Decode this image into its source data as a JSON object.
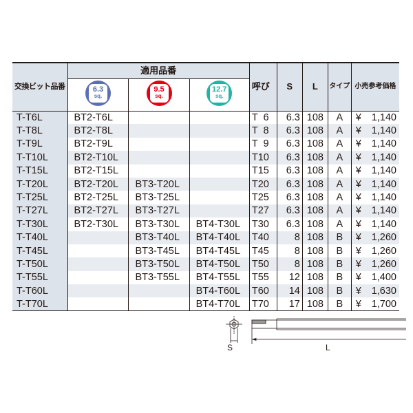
{
  "header": {
    "col_part": "交換ビット品番",
    "col_group": "適用品番",
    "badges": [
      {
        "value": "6.3",
        "unit": "sq.",
        "color": "#5b6fb4"
      },
      {
        "value": "9.5",
        "unit": "sq.",
        "color": "#e60012"
      },
      {
        "value": "12.7",
        "unit": "sq.",
        "color": "#1fb5a5"
      }
    ],
    "col_size": "呼び",
    "col_s": "S",
    "col_l": "L",
    "col_type": "タイプ",
    "col_price": "小売参考価格"
  },
  "rows": [
    {
      "part": "T-T6L",
      "bt2": "BT2-T6L",
      "bt3": "",
      "bt4": "",
      "size": "T  6",
      "s": "6.3",
      "l": "108",
      "type": "A",
      "yen": "¥",
      "price": "1,140"
    },
    {
      "part": "T-T8L",
      "bt2": "BT2-T8L",
      "bt3": "",
      "bt4": "",
      "size": "T  8",
      "s": "6.3",
      "l": "108",
      "type": "A",
      "yen": "¥",
      "price": "1,140"
    },
    {
      "part": "T-T9L",
      "bt2": "BT2-T9L",
      "bt3": "",
      "bt4": "",
      "size": "T  9",
      "s": "6.3",
      "l": "108",
      "type": "A",
      "yen": "¥",
      "price": "1,140"
    },
    {
      "part": "T-T10L",
      "bt2": "BT2-T10L",
      "bt3": "",
      "bt4": "",
      "size": "T10",
      "s": "6.3",
      "l": "108",
      "type": "A",
      "yen": "¥",
      "price": "1,140"
    },
    {
      "part": "T-T15L",
      "bt2": "BT2-T15L",
      "bt3": "",
      "bt4": "",
      "size": "T15",
      "s": "6.3",
      "l": "108",
      "type": "A",
      "yen": "¥",
      "price": "1,140"
    },
    {
      "part": "T-T20L",
      "bt2": "BT2-T20L",
      "bt3": "BT3-T20L",
      "bt4": "",
      "size": "T20",
      "s": "6.3",
      "l": "108",
      "type": "A",
      "yen": "¥",
      "price": "1,140"
    },
    {
      "part": "T-T25L",
      "bt2": "BT2-T25L",
      "bt3": "BT3-T25L",
      "bt4": "",
      "size": "T25",
      "s": "6.3",
      "l": "108",
      "type": "A",
      "yen": "¥",
      "price": "1,140"
    },
    {
      "part": "T-T27L",
      "bt2": "BT2-T27L",
      "bt3": "BT3-T27L",
      "bt4": "",
      "size": "T27",
      "s": "6.3",
      "l": "108",
      "type": "A",
      "yen": "¥",
      "price": "1,140"
    },
    {
      "part": "T-T30L",
      "bt2": "BT2-T30L",
      "bt3": "BT3-T30L",
      "bt4": "BT4-T30L",
      "size": "T30",
      "s": "6.3",
      "l": "108",
      "type": "A",
      "yen": "¥",
      "price": "1,140"
    },
    {
      "part": "T-T40L",
      "bt2": "",
      "bt3": "BT3-T40L",
      "bt4": "BT4-T40L",
      "size": "T40",
      "s": "8",
      "l": "108",
      "type": "B",
      "yen": "¥",
      "price": "1,260"
    },
    {
      "part": "T-T45L",
      "bt2": "",
      "bt3": "BT3-T45L",
      "bt4": "BT4-T45L",
      "size": "T45",
      "s": "8",
      "l": "108",
      "type": "B",
      "yen": "¥",
      "price": "1,260"
    },
    {
      "part": "T-T50L",
      "bt2": "",
      "bt3": "BT3-T50L",
      "bt4": "BT4-T50L",
      "size": "T50",
      "s": "8",
      "l": "108",
      "type": "B",
      "yen": "¥",
      "price": "1,260"
    },
    {
      "part": "T-T55L",
      "bt2": "",
      "bt3": "BT3-T55L",
      "bt4": "BT4-T55L",
      "size": "T55",
      "s": "12",
      "l": "108",
      "type": "B",
      "yen": "¥",
      "price": "1,400"
    },
    {
      "part": "T-T60L",
      "bt2": "",
      "bt3": "",
      "bt4": "BT4-T60L",
      "size": "T60",
      "s": "14",
      "l": "108",
      "type": "B",
      "yen": "¥",
      "price": "1,630"
    },
    {
      "part": "T-T70L",
      "bt2": "",
      "bt3": "",
      "bt4": "BT4-T70L",
      "size": "T70",
      "s": "17",
      "l": "108",
      "type": "B",
      "yen": "¥",
      "price": "1,700"
    }
  ],
  "diagram": {
    "s_label": "S",
    "l_label": "L"
  }
}
